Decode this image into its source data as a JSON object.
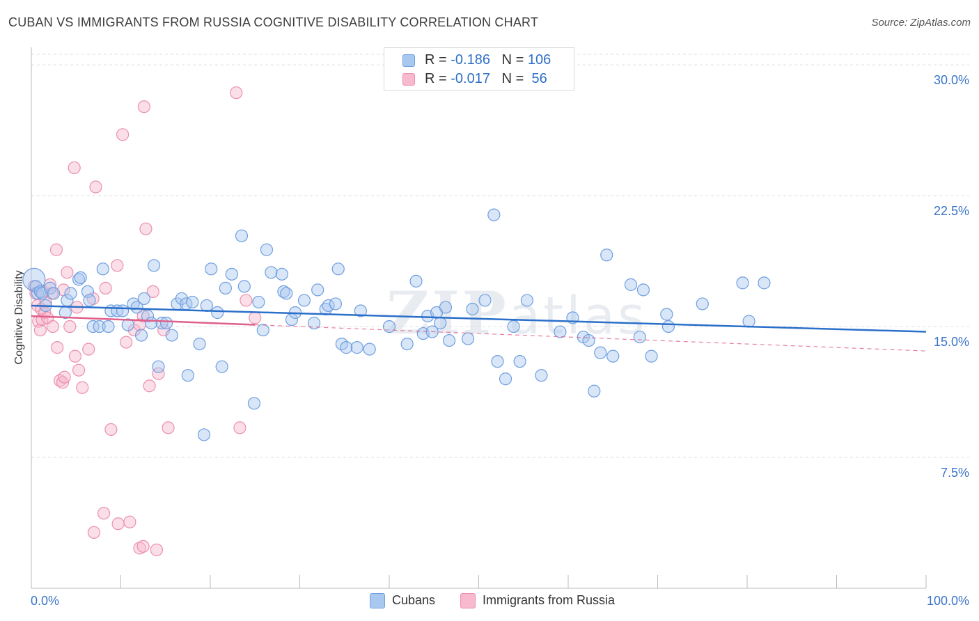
{
  "title": "CUBAN VS IMMIGRANTS FROM RUSSIA COGNITIVE DISABILITY CORRELATION CHART",
  "source": "Source: ZipAtlas.com",
  "watermark": {
    "zip": "ZIP",
    "atlas": "atlas"
  },
  "legend_top": {
    "cubans": {
      "r_label": "R = ",
      "r_value": "-0.186",
      "n_label": "N = ",
      "n_value": "106"
    },
    "russia": {
      "r_label": "R = ",
      "r_value": "-0.017",
      "n_label": "N = ",
      "n_value": " 56"
    }
  },
  "legend_bottom": {
    "cubans": "Cubans",
    "russia": "Immigrants from Russia"
  },
  "colors": {
    "cubans_fill": "#a9c8f0",
    "cubans_stroke": "#6f9fe0",
    "cubans_line": "#2a6fc9",
    "russia_fill": "#f7b9cd",
    "russia_stroke": "#ec8fae",
    "russia_line": "#e0608a",
    "axis_text": "#3a74c8",
    "grid": "#dddddd"
  },
  "chart_data": {
    "type": "scatter",
    "title": "CUBAN VS IMMIGRANTS FROM RUSSIA COGNITIVE DISABILITY CORRELATION CHART",
    "xlabel": "",
    "ylabel": "Cognitive Disability",
    "xlim": [
      0,
      100
    ],
    "ylim": [
      0,
      31
    ],
    "x_tick_labels": [
      "0.0%",
      "100.0%"
    ],
    "y_ticks": [
      7.5,
      15.0,
      22.5,
      30.0
    ],
    "y_tick_labels": [
      "7.5%",
      "15.0%",
      "22.5%",
      "30.0%"
    ],
    "grid": "horizontal dashed",
    "legend_position": "top-center",
    "series": [
      {
        "name": "Cubans",
        "r": -0.186,
        "n": 106,
        "trend": {
          "x": [
            0,
            100
          ],
          "y": [
            16.2,
            14.7
          ]
        },
        "points": [
          [
            0.3,
            17.7
          ],
          [
            0.5,
            17.3
          ],
          [
            0.7,
            16.9
          ],
          [
            1.0,
            17.0
          ],
          [
            1.2,
            16.9
          ],
          [
            1.6,
            16.2
          ],
          [
            2.1,
            17.2
          ],
          [
            2.5,
            16.9
          ],
          [
            3.8,
            15.8
          ],
          [
            4.0,
            16.5
          ],
          [
            4.4,
            16.9
          ],
          [
            5.3,
            17.7
          ],
          [
            5.5,
            17.8
          ],
          [
            6.3,
            17.0
          ],
          [
            6.5,
            16.5
          ],
          [
            6.9,
            15.0
          ],
          [
            7.6,
            15.0
          ],
          [
            8.0,
            18.3
          ],
          [
            8.6,
            15.0
          ],
          [
            8.9,
            15.9
          ],
          [
            9.6,
            15.9
          ],
          [
            10.2,
            15.9
          ],
          [
            10.8,
            15.1
          ],
          [
            11.4,
            16.3
          ],
          [
            11.8,
            16.1
          ],
          [
            12.3,
            14.5
          ],
          [
            12.6,
            16.6
          ],
          [
            13.0,
            15.6
          ],
          [
            13.4,
            15.2
          ],
          [
            13.7,
            18.5
          ],
          [
            14.2,
            12.7
          ],
          [
            14.6,
            15.2
          ],
          [
            15.1,
            15.2
          ],
          [
            15.7,
            14.5
          ],
          [
            16.3,
            16.3
          ],
          [
            16.8,
            16.6
          ],
          [
            17.3,
            16.3
          ],
          [
            17.5,
            12.2
          ],
          [
            18.0,
            16.4
          ],
          [
            18.8,
            14.0
          ],
          [
            19.3,
            8.8
          ],
          [
            19.6,
            16.2
          ],
          [
            20.1,
            18.3
          ],
          [
            20.8,
            15.8
          ],
          [
            21.3,
            12.7
          ],
          [
            21.7,
            17.2
          ],
          [
            22.4,
            18.0
          ],
          [
            23.5,
            20.2
          ],
          [
            23.8,
            17.3
          ],
          [
            24.9,
            10.6
          ],
          [
            25.4,
            16.4
          ],
          [
            25.9,
            14.8
          ],
          [
            26.3,
            19.4
          ],
          [
            26.8,
            18.1
          ],
          [
            28.0,
            18.0
          ],
          [
            28.2,
            17.0
          ],
          [
            28.5,
            16.9
          ],
          [
            29.1,
            15.4
          ],
          [
            29.5,
            15.8
          ],
          [
            30.5,
            16.5
          ],
          [
            31.6,
            15.2
          ],
          [
            32.0,
            17.1
          ],
          [
            32.9,
            16.0
          ],
          [
            33.2,
            16.2
          ],
          [
            34.0,
            16.3
          ],
          [
            34.3,
            18.3
          ],
          [
            34.7,
            14.0
          ],
          [
            35.2,
            13.8
          ],
          [
            36.4,
            13.8
          ],
          [
            36.8,
            15.9
          ],
          [
            37.8,
            13.7
          ],
          [
            40.0,
            15.0
          ],
          [
            42.0,
            14.0
          ],
          [
            43.0,
            17.6
          ],
          [
            43.8,
            14.6
          ],
          [
            44.3,
            15.6
          ],
          [
            44.8,
            14.7
          ],
          [
            45.3,
            15.8
          ],
          [
            45.7,
            15.2
          ],
          [
            46.3,
            16.1
          ],
          [
            46.7,
            14.2
          ],
          [
            48.8,
            14.3
          ],
          [
            49.3,
            16.0
          ],
          [
            50.7,
            16.5
          ],
          [
            51.7,
            21.4
          ],
          [
            52.1,
            13.0
          ],
          [
            53.0,
            12.0
          ],
          [
            53.9,
            15.0
          ],
          [
            54.6,
            13.0
          ],
          [
            55.4,
            16.5
          ],
          [
            57.0,
            12.2
          ],
          [
            59.1,
            14.7
          ],
          [
            60.5,
            15.5
          ],
          [
            61.7,
            14.4
          ],
          [
            62.3,
            14.2
          ],
          [
            62.9,
            11.3
          ],
          [
            63.6,
            13.5
          ],
          [
            64.3,
            19.1
          ],
          [
            65.0,
            13.3
          ],
          [
            67.0,
            17.4
          ],
          [
            68.0,
            14.4
          ],
          [
            68.4,
            17.1
          ],
          [
            69.3,
            13.3
          ],
          [
            71.0,
            15.7
          ],
          [
            71.2,
            15.0
          ],
          [
            75.0,
            16.3
          ],
          [
            79.5,
            17.5
          ],
          [
            80.2,
            15.3
          ],
          [
            81.9,
            17.5
          ]
        ]
      },
      {
        "name": "Immigrants from Russia",
        "r": -0.017,
        "n": 56,
        "trend": {
          "x": [
            0,
            25
          ],
          "y": [
            15.6,
            15.1
          ]
        },
        "trend_extended": {
          "x": [
            25,
            100
          ],
          "y": [
            15.1,
            13.6
          ]
        },
        "points": [
          [
            0.3,
            17.3
          ],
          [
            0.5,
            16.9
          ],
          [
            0.7,
            16.2
          ],
          [
            0.8,
            15.3
          ],
          [
            1.0,
            14.8
          ],
          [
            1.1,
            16.0
          ],
          [
            1.2,
            15.4
          ],
          [
            1.3,
            17.0
          ],
          [
            1.5,
            15.8
          ],
          [
            1.6,
            16.4
          ],
          [
            1.8,
            15.5
          ],
          [
            2.1,
            17.4
          ],
          [
            2.3,
            16.9
          ],
          [
            2.4,
            15.0
          ],
          [
            2.9,
            13.8
          ],
          [
            3.2,
            11.9
          ],
          [
            3.5,
            11.8
          ],
          [
            3.7,
            12.1
          ],
          [
            4.0,
            18.1
          ],
          [
            4.3,
            15.0
          ],
          [
            4.8,
            24.1
          ],
          [
            4.9,
            13.3
          ],
          [
            5.1,
            16.1
          ],
          [
            5.3,
            12.5
          ],
          [
            5.7,
            11.5
          ],
          [
            6.4,
            13.7
          ],
          [
            6.9,
            16.6
          ],
          [
            7.2,
            23.0
          ],
          [
            8.3,
            17.2
          ],
          [
            8.9,
            9.1
          ],
          [
            9.6,
            18.5
          ],
          [
            10.2,
            26.0
          ],
          [
            10.6,
            14.1
          ],
          [
            11.5,
            14.8
          ],
          [
            12.1,
            15.1
          ],
          [
            12.5,
            15.6
          ],
          [
            12.6,
            27.6
          ],
          [
            12.8,
            20.6
          ],
          [
            13.2,
            11.6
          ],
          [
            13.6,
            17.0
          ],
          [
            14.2,
            12.3
          ],
          [
            14.8,
            14.8
          ],
          [
            15.3,
            9.2
          ],
          [
            22.9,
            28.4
          ],
          [
            23.3,
            9.2
          ],
          [
            24.0,
            16.5
          ],
          [
            25.0,
            15.5
          ],
          [
            7.0,
            3.2
          ],
          [
            8.1,
            4.3
          ],
          [
            11.0,
            3.8
          ],
          [
            9.7,
            3.7
          ],
          [
            12.1,
            2.3
          ],
          [
            14.0,
            2.2
          ],
          [
            12.5,
            2.4
          ],
          [
            2.8,
            19.4
          ],
          [
            3.6,
            17.1
          ]
        ]
      }
    ]
  }
}
